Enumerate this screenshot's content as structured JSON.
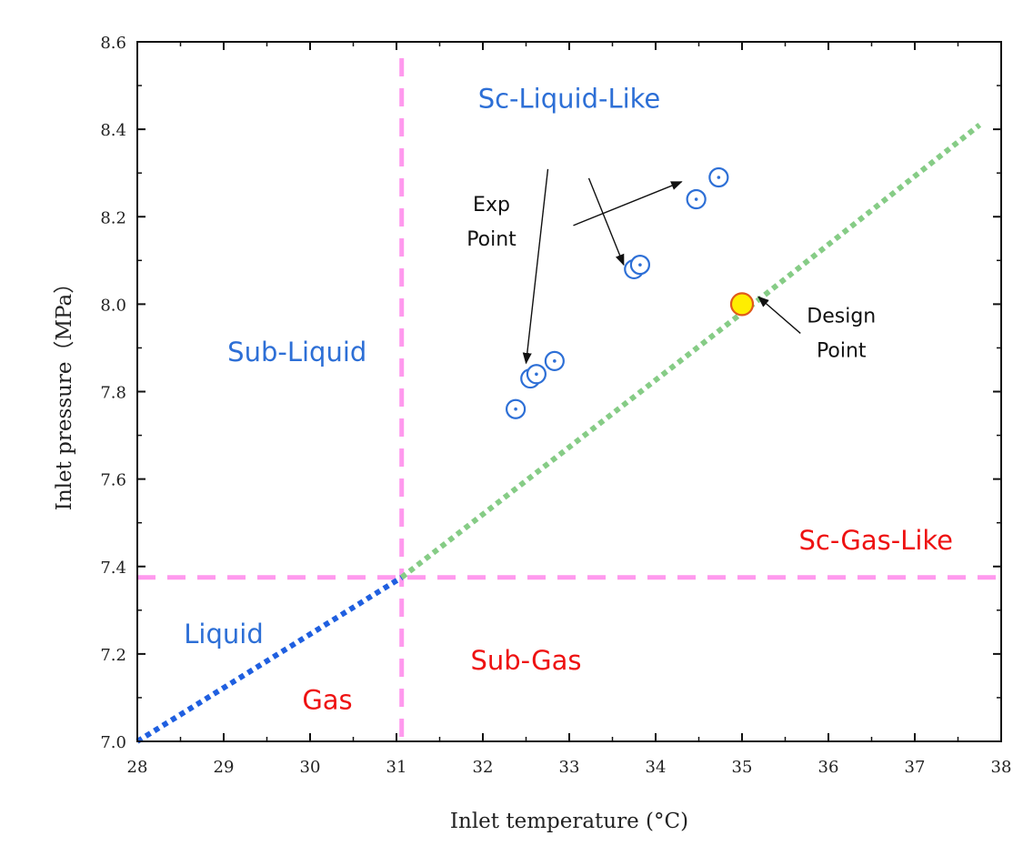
{
  "chart_data": {
    "type": "scatter",
    "xlabel": "Inlet temperature (°C)",
    "ylabel": "Inlet pressure（MPa）",
    "xlim": [
      28,
      38
    ],
    "ylim": [
      7.0,
      8.6
    ],
    "xticks": [
      28,
      29,
      30,
      31,
      32,
      33,
      34,
      35,
      36,
      37,
      38
    ],
    "yticks": [
      7.0,
      7.2,
      7.4,
      7.6,
      7.8,
      8.0,
      8.2,
      8.4,
      8.6
    ],
    "ytick_labels": [
      "7.0",
      "7.2",
      "7.4",
      "7.6",
      "7.8",
      "8.0",
      "8.2",
      "8.4",
      "8.6"
    ],
    "grid": false,
    "series": [
      {
        "marker": "circled-dot",
        "color": "#2d6fd6",
        "points": [
          {
            "x": 32.38,
            "y": 7.76
          },
          {
            "x": 32.55,
            "y": 7.83
          },
          {
            "x": 32.62,
            "y": 7.84
          },
          {
            "x": 32.83,
            "y": 7.87
          },
          {
            "x": 33.75,
            "y": 8.08
          },
          {
            "x": 33.82,
            "y": 8.09
          },
          {
            "x": 34.47,
            "y": 8.24
          },
          {
            "x": 34.73,
            "y": 8.29
          }
        ]
      },
      {
        "marker": "filled-circle",
        "color": "#ffee00",
        "edge_color": "#e05a1a",
        "points": [
          {
            "x": 35.0,
            "y": 8.0
          }
        ]
      }
    ],
    "lines": [
      {
        "role": "critical-temperature",
        "style": "dashed",
        "color": "#ff99ee",
        "x": 31.06
      },
      {
        "role": "critical-pressure",
        "style": "dashed",
        "color": "#ff99ee",
        "y": 7.375
      },
      {
        "role": "saturation-curve",
        "style": "dotted",
        "color": "#1f5fe0",
        "points": [
          [
            28.0,
            7.0
          ],
          [
            31.06,
            7.375
          ]
        ]
      },
      {
        "role": "pseudo-critical-line",
        "style": "dotted",
        "color": "#86cc86",
        "points": [
          [
            31.06,
            7.375
          ],
          [
            35.0,
            7.98
          ],
          [
            37.75,
            8.41
          ]
        ]
      }
    ],
    "regions": [
      {
        "text": "Sc-Liquid-Like",
        "color": "#2d6fd6",
        "x": 33.0,
        "y": 8.47
      },
      {
        "text": "Sub-Liquid",
        "color": "#2d6fd6",
        "x": 29.85,
        "y": 7.89
      },
      {
        "text": "Sc-Gas-Like",
        "color": "#ee1111",
        "x": 36.55,
        "y": 7.46
      },
      {
        "text": "Liquid",
        "color": "#2d6fd6",
        "x": 29.0,
        "y": 7.245
      },
      {
        "text": "Sub-Gas",
        "color": "#ee1111",
        "x": 32.5,
        "y": 7.185
      },
      {
        "text": "Gas",
        "color": "#ee1111",
        "x": 30.2,
        "y": 7.095
      }
    ],
    "annotations": [
      {
        "lines": [
          "Exp",
          "Point"
        ],
        "x": 32.1,
        "y": 8.18
      },
      {
        "lines": [
          "Design",
          "Point"
        ],
        "x": 36.15,
        "y": 7.925
      }
    ]
  }
}
